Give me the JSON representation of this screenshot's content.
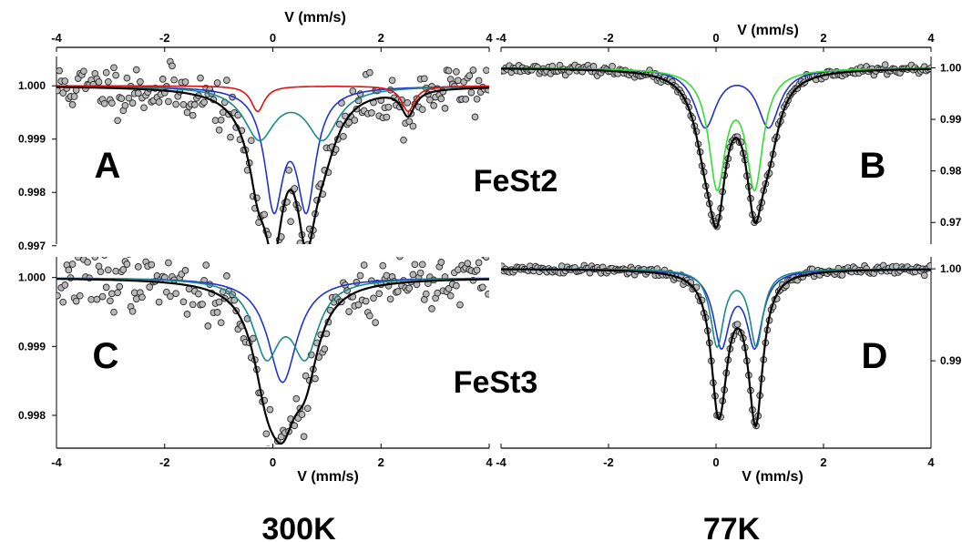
{
  "figure": {
    "temperatures": [
      "300K",
      "77K"
    ],
    "samples": [
      "FeSt2",
      "FeSt3"
    ]
  },
  "chart_data": [
    {
      "id": "A",
      "type": "line",
      "panel_label": "A",
      "sample": "FeSt2",
      "temperature": "300K",
      "xlabel": "V (mm/s)",
      "xlim": [
        -4,
        4
      ],
      "xticks": [
        -4,
        -2,
        0,
        2,
        4
      ],
      "ylim": [
        0.99703,
        1.00055
      ],
      "yticks": [
        0.997,
        0.998,
        0.999,
        1.0
      ],
      "ytick_labels": [
        "0.997",
        "0.998",
        "0.999",
        "1.000"
      ],
      "y_axis_side": "left",
      "data_points": {
        "baseline": 1.0,
        "scatter": 0.00024,
        "seed": 11
      },
      "fit": {
        "baseline": 1.0,
        "components": [
          {
            "color": "#2233cc",
            "lines": [
              {
                "center": 0.02,
                "depth": 0.00216,
                "fwhm": 0.42
              },
              {
                "center": 0.62,
                "depth": 0.00216,
                "fwhm": 0.42
              }
            ]
          },
          {
            "color": "#1a8a8a",
            "lines": [
              {
                "center": -0.25,
                "depth": 0.00095,
                "fwhm": 0.7
              },
              {
                "center": 0.92,
                "depth": 0.00095,
                "fwhm": 0.7
              }
            ]
          },
          {
            "color": "#e01010",
            "lines": [
              {
                "center": -0.28,
                "depth": 0.00048,
                "fwhm": 0.3
              },
              {
                "center": 2.5,
                "depth": 0.00048,
                "fwhm": 0.3
              }
            ]
          }
        ]
      }
    },
    {
      "id": "B",
      "type": "line",
      "panel_label": "B",
      "sample": "FeSt2",
      "temperature": "77K",
      "xlabel": "V (mm/s)",
      "xlim": [
        -4,
        4
      ],
      "xticks": [
        -4,
        -2,
        0,
        2,
        4
      ],
      "ylim": [
        0.9658,
        1.0022
      ],
      "yticks": [
        0.97,
        0.98,
        0.99,
        1.0
      ],
      "ytick_labels": [
        "0.97",
        "0.98",
        "0.99",
        "1.00"
      ],
      "y_axis_side": "right",
      "data_points": {
        "baseline": 1.0,
        "scatter": 0.0004,
        "seed": 23
      },
      "fit": {
        "baseline": 1.0,
        "components": [
          {
            "color": "#2233cc",
            "lines": [
              {
                "center": -0.2,
                "depth": 0.0112,
                "fwhm": 0.5
              },
              {
                "center": 0.98,
                "depth": 0.0112,
                "fwhm": 0.5
              }
            ]
          },
          {
            "color": "#33dd33",
            "lines": [
              {
                "center": 0.02,
                "depth": 0.0223,
                "fwhm": 0.38
              },
              {
                "center": 0.72,
                "depth": 0.0223,
                "fwhm": 0.38
              }
            ]
          }
        ]
      }
    },
    {
      "id": "C",
      "type": "line",
      "panel_label": "C",
      "sample": "FeSt3",
      "temperature": "300K",
      "xlabel": "V (mm/s)",
      "xlim": [
        -4,
        4
      ],
      "xticks": [
        -4,
        -2,
        0,
        2,
        4
      ],
      "ylim": [
        0.99755,
        1.0003
      ],
      "yticks": [
        0.998,
        0.999,
        1.0
      ],
      "ytick_labels": [
        "0.998",
        "0.999",
        "1.000"
      ],
      "y_axis_side": "left",
      "data_points": {
        "baseline": 1.0,
        "scatter": 0.00022,
        "seed": 37
      },
      "fit": {
        "baseline": 1.0,
        "components": [
          {
            "color": "#2233cc",
            "lines": [
              {
                "center": 0.18,
                "depth": 0.00152,
                "fwhm": 0.65
              }
            ]
          },
          {
            "color": "#1a8a8a",
            "lines": [
              {
                "center": -0.12,
                "depth": 0.00105,
                "fwhm": 0.6
              },
              {
                "center": 0.6,
                "depth": 0.00105,
                "fwhm": 0.6
              }
            ]
          }
        ]
      }
    },
    {
      "id": "D",
      "type": "line",
      "panel_label": "D",
      "sample": "FeSt3",
      "temperature": "77K",
      "xlabel": "V (mm/s)",
      "xlim": [
        -4,
        4
      ],
      "xticks": [
        -4,
        -2,
        0,
        2,
        4
      ],
      "ylim": [
        0.9807,
        1.0013
      ],
      "yticks": [
        0.99,
        1.0
      ],
      "ytick_labels": [
        "0.99",
        "1.00"
      ],
      "y_axis_side": "right",
      "data_points": {
        "baseline": 1.0,
        "scatter": 0.00025,
        "seed": 51
      },
      "fit": {
        "baseline": 1.0,
        "components": [
          {
            "color": "#2233cc",
            "lines": [
              {
                "center": 0.1,
                "depth": 0.0081,
                "fwhm": 0.36
              },
              {
                "center": 0.72,
                "depth": 0.0081,
                "fwhm": 0.36
              }
            ]
          },
          {
            "color": "#1a8a8a",
            "lines": [
              {
                "center": 0.02,
                "depth": 0.0082,
                "fwhm": 0.3
              },
              {
                "center": 0.75,
                "depth": 0.0082,
                "fwhm": 0.3
              }
            ]
          }
        ]
      }
    }
  ]
}
